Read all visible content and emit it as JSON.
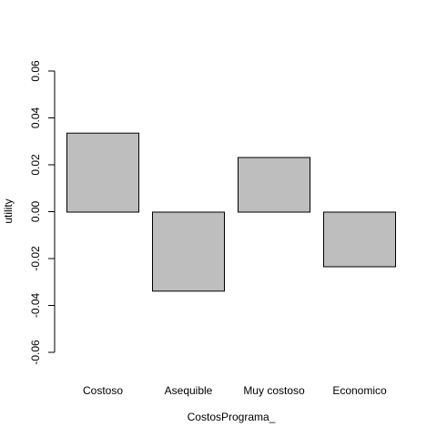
{
  "chart_data": {
    "type": "bar",
    "categories": [
      "Costoso",
      "Asequible",
      "Muy costoso",
      "Economico"
    ],
    "values": [
      0.0337,
      -0.0337,
      0.0233,
      -0.0233
    ],
    "title": "",
    "xlabel": "CostosPrograma_",
    "ylabel": "utility",
    "ylim": [
      -0.06,
      0.06
    ],
    "yticks": [
      -0.06,
      -0.04,
      -0.02,
      0.0,
      0.02,
      0.04,
      0.06
    ],
    "ytick_labels": [
      "-0.06",
      "-0.04",
      "-0.02",
      "0.00",
      "0.02",
      "0.04",
      "0.06"
    ],
    "grid": false,
    "legend": "none",
    "bar_fill": "#bebebe",
    "bar_stroke": "#000000"
  }
}
